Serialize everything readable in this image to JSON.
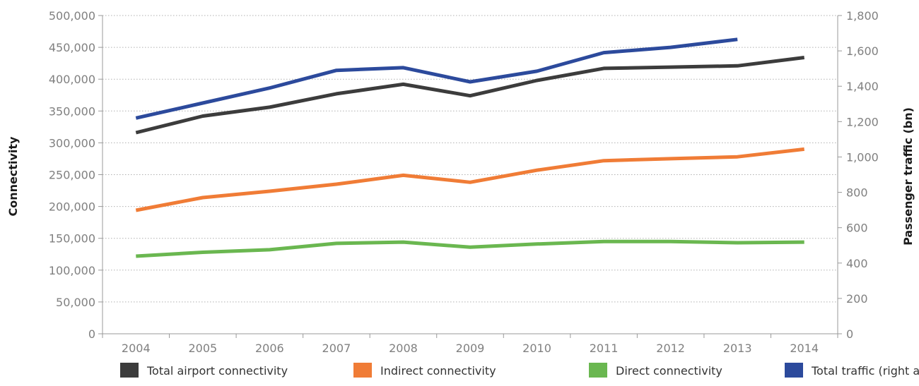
{
  "chart_data": {
    "type": "line",
    "x": [
      "2004",
      "2005",
      "2006",
      "2007",
      "2008",
      "2009",
      "2010",
      "2011",
      "2012",
      "2013",
      "2014"
    ],
    "ylabel": "Connectivity",
    "y2label": "Passenger traffic (bn)",
    "ylim": [
      0,
      500000
    ],
    "y2lim": [
      0,
      1800
    ],
    "yticks": [
      "0",
      "50,000",
      "100,000",
      "150,000",
      "200,000",
      "250,000",
      "300,000",
      "350,000",
      "400,000",
      "450,000",
      "500,000"
    ],
    "y2ticks": [
      "0",
      "200",
      "400",
      "600",
      "800",
      "1,000",
      "1,200",
      "1,400",
      "1,600",
      "1,800"
    ],
    "grid": true,
    "legend_position": "bottom",
    "series": [
      {
        "name": "Total airport connectivity",
        "axis": "left",
        "color": "#3c3c3c",
        "values": [
          316000,
          342000,
          356000,
          377000,
          392000,
          374000,
          398000,
          417000,
          419000,
          421000,
          434000
        ]
      },
      {
        "name": "Indirect connectivity",
        "axis": "left",
        "color": "#f07c36",
        "values": [
          194000,
          214000,
          224000,
          235000,
          249000,
          238000,
          257000,
          272000,
          275000,
          278000,
          290000
        ]
      },
      {
        "name": "Direct connectivity",
        "axis": "left",
        "color": "#6ab750",
        "values": [
          122000,
          128000,
          132000,
          142000,
          144000,
          136000,
          141000,
          145000,
          145000,
          143000,
          144000
        ]
      },
      {
        "name": "Total traffic (right axis)",
        "axis": "right",
        "color": "#2c4a9c",
        "values": [
          1220,
          1305,
          1390,
          1490,
          1505,
          1425,
          1485,
          1590,
          1620,
          1665,
          null
        ]
      }
    ]
  }
}
